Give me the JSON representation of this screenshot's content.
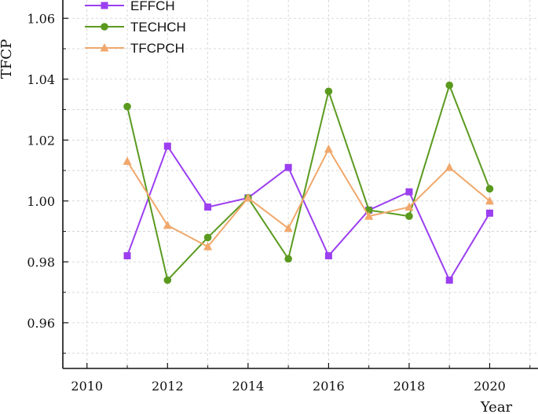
{
  "chart_data": {
    "type": "line",
    "ylabel": "TFCP",
    "xlabel": "Year",
    "xlim": [
      2009.4,
      2021.2
    ],
    "ylim": [
      0.945,
      1.066
    ],
    "x_ticks": [
      2010,
      2012,
      2014,
      2016,
      2018,
      2020
    ],
    "x_tick_labels": [
      "2010",
      "2012",
      "2014",
      "2016",
      "2018",
      "2020"
    ],
    "y_ticks": [
      0.96,
      0.98,
      1.0,
      1.02,
      1.04,
      1.06
    ],
    "y_tick_labels": [
      "0.96",
      "0.98",
      "1.00",
      "1.02",
      "1.04",
      "1.06"
    ],
    "grid": true,
    "legend_position": "top-left",
    "x": [
      2011,
      2012,
      2013,
      2014,
      2015,
      2016,
      2017,
      2018,
      2019,
      2020
    ],
    "series": [
      {
        "name": "EFFCH",
        "color": "#9b3ff0",
        "marker": "square",
        "values": [
          0.982,
          1.018,
          0.998,
          1.001,
          1.011,
          0.982,
          0.997,
          1.003,
          0.974,
          0.996
        ]
      },
      {
        "name": "TECHCH",
        "color": "#5a9a1f",
        "marker": "circle",
        "values": [
          1.031,
          0.974,
          0.988,
          1.001,
          0.981,
          1.036,
          0.997,
          0.995,
          1.038,
          1.004
        ]
      },
      {
        "name": "TFCPCH",
        "color": "#f0a86c",
        "marker": "triangle",
        "values": [
          1.013,
          0.992,
          0.985,
          1.001,
          0.991,
          1.017,
          0.995,
          0.998,
          1.011,
          1.0
        ]
      }
    ]
  }
}
